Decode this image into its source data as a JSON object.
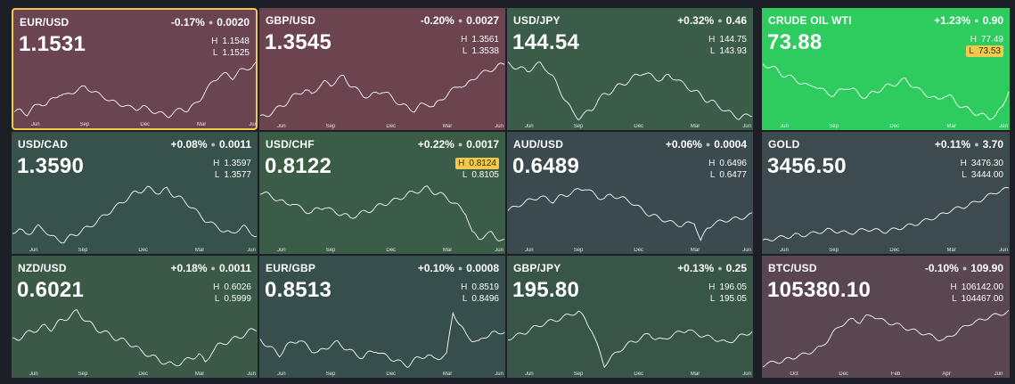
{
  "tiles": [
    {
      "symbol": "EUR/USD",
      "change_pct": "-0.17%",
      "change_abs": "0.0020",
      "price": "1.1531",
      "high": "1.1548",
      "low": "1.1525",
      "bg": "#6a4450",
      "selected": true,
      "high_badge": false,
      "low_badge": false,
      "months": [
        "Jun",
        "Sep",
        "Dec",
        "Mar",
        "Jun"
      ],
      "series": [
        30,
        32,
        28,
        35,
        40,
        38,
        45,
        50,
        48,
        52,
        55,
        58,
        54,
        50,
        47,
        42,
        40,
        38,
        35,
        34,
        36,
        33,
        30,
        28,
        26,
        30,
        34,
        32,
        38,
        45,
        55,
        65,
        70,
        72,
        68,
        75,
        78,
        80,
        85
      ]
    },
    {
      "symbol": "GBP/USD",
      "change_pct": "-0.20%",
      "change_abs": "0.0027",
      "price": "1.3545",
      "high": "1.3561",
      "low": "1.3538",
      "bg": "#6c4450",
      "selected": false,
      "high_badge": false,
      "low_badge": false,
      "months": [
        "Jun",
        "Sep",
        "Dec",
        "Mar",
        "Jun"
      ],
      "series": [
        28,
        30,
        34,
        38,
        42,
        48,
        52,
        55,
        50,
        58,
        62,
        60,
        65,
        68,
        60,
        55,
        50,
        48,
        52,
        54,
        50,
        45,
        40,
        38,
        35,
        40,
        42,
        38,
        45,
        50,
        55,
        60,
        58,
        65,
        70,
        72,
        75,
        78,
        80
      ]
    },
    {
      "symbol": "USD/JPY",
      "change_pct": "+0.32%",
      "change_abs": "0.46",
      "price": "144.54",
      "high": "144.75",
      "low": "143.93",
      "bg": "#3a5c48",
      "selected": false,
      "high_badge": false,
      "low_badge": false,
      "months": [
        "Jun",
        "Sep",
        "Dec",
        "Mar",
        "Jun"
      ],
      "series": [
        72,
        70,
        68,
        66,
        70,
        72,
        68,
        60,
        50,
        40,
        30,
        25,
        28,
        32,
        40,
        45,
        48,
        52,
        55,
        58,
        62,
        65,
        62,
        60,
        58,
        62,
        60,
        55,
        52,
        48,
        45,
        40,
        38,
        35,
        30,
        28,
        25,
        26,
        28
      ]
    },
    {
      "symbol": "CRUDE OIL WTI",
      "change_pct": "+1.23%",
      "change_abs": "0.90",
      "price": "73.88",
      "high": "77.49",
      "low": "73.53",
      "bg": "#2ecc5f",
      "selected": false,
      "high_badge": false,
      "low_badge": true,
      "months": [
        "Jun",
        "Sep",
        "Dec",
        "Mar",
        "Jun"
      ],
      "series": [
        70,
        68,
        65,
        60,
        58,
        55,
        52,
        48,
        50,
        45,
        42,
        40,
        44,
        48,
        45,
        40,
        38,
        42,
        45,
        48,
        50,
        52,
        55,
        50,
        45,
        42,
        38,
        35,
        40,
        38,
        32,
        28,
        25,
        22,
        20,
        18,
        20,
        28,
        45
      ]
    },
    {
      "symbol": "USD/CAD",
      "change_pct": "+0.08%",
      "change_abs": "0.0011",
      "price": "1.3590",
      "high": "1.3597",
      "low": "1.3577",
      "bg": "#37524a",
      "selected": false,
      "high_badge": false,
      "low_badge": false,
      "months": [
        "Jun",
        "Sep",
        "Dec",
        "Mar",
        "Jun"
      ],
      "series": [
        30,
        32,
        28,
        30,
        35,
        32,
        25,
        22,
        20,
        25,
        28,
        32,
        35,
        40,
        45,
        50,
        55,
        60,
        65,
        70,
        72,
        75,
        72,
        70,
        74,
        68,
        65,
        60,
        55,
        48,
        42,
        38,
        35,
        30,
        28,
        32,
        35,
        30,
        25
      ]
    },
    {
      "symbol": "USD/CHF",
      "change_pct": "+0.22%",
      "change_abs": "0.0017",
      "price": "0.8122",
      "high": "0.8124",
      "low": "0.8105",
      "bg": "#3b5c47",
      "selected": false,
      "high_badge": true,
      "low_badge": false,
      "months": [
        "Jun",
        "Sep",
        "Dec",
        "Mar",
        "Jun"
      ],
      "series": [
        60,
        58,
        55,
        52,
        48,
        50,
        45,
        42,
        40,
        44,
        46,
        42,
        40,
        38,
        35,
        38,
        40,
        42,
        45,
        48,
        50,
        52,
        55,
        58,
        60,
        62,
        64,
        60,
        58,
        55,
        50,
        45,
        40,
        20,
        15,
        18,
        20,
        15,
        12
      ]
    },
    {
      "symbol": "AUD/USD",
      "change_pct": "+0.06%",
      "change_abs": "0.0004",
      "price": "0.6489",
      "high": "0.6496",
      "low": "0.6477",
      "bg": "#3b4a4f",
      "selected": false,
      "high_badge": false,
      "low_badge": false,
      "months": [
        "Jun",
        "Sep",
        "Dec",
        "Mar",
        "Jun"
      ],
      "series": [
        45,
        48,
        52,
        55,
        58,
        60,
        58,
        55,
        60,
        62,
        65,
        68,
        70,
        65,
        60,
        58,
        62,
        60,
        58,
        55,
        50,
        45,
        40,
        38,
        35,
        32,
        30,
        28,
        30,
        32,
        10,
        25,
        30,
        32,
        34,
        35,
        36,
        38,
        40
      ]
    },
    {
      "symbol": "GOLD",
      "change_pct": "+0.11%",
      "change_abs": "3.70",
      "price": "3456.50",
      "high": "3476.30",
      "low": "3444.00",
      "bg": "#3d4b4f",
      "selected": false,
      "high_badge": false,
      "low_badge": false,
      "months": [
        "Jun",
        "Sep",
        "Dec",
        "Mar",
        "Jun"
      ],
      "series": [
        10,
        12,
        14,
        15,
        16,
        18,
        17,
        19,
        20,
        22,
        24,
        23,
        22,
        20,
        21,
        23,
        25,
        24,
        23,
        22,
        24,
        26,
        28,
        30,
        32,
        35,
        38,
        40,
        44,
        48,
        50,
        52,
        55,
        58,
        62,
        66,
        70,
        72,
        75
      ]
    },
    {
      "symbol": "NZD/USD",
      "change_pct": "+0.18%",
      "change_abs": "0.0011",
      "price": "0.6021",
      "high": "0.6026",
      "low": "0.5999",
      "bg": "#3a5a47",
      "selected": false,
      "high_badge": false,
      "low_badge": false,
      "months": [
        "Jun",
        "Sep",
        "Dec",
        "Mar",
        "Jun"
      ],
      "series": [
        40,
        42,
        45,
        48,
        50,
        52,
        50,
        55,
        58,
        62,
        65,
        60,
        55,
        50,
        48,
        45,
        42,
        40,
        38,
        35,
        30,
        28,
        25,
        22,
        20,
        18,
        20,
        22,
        25,
        28,
        20,
        30,
        35,
        38,
        40,
        42,
        45,
        48,
        50
      ]
    },
    {
      "symbol": "EUR/GBP",
      "change_pct": "+0.10%",
      "change_abs": "0.0008",
      "price": "0.8513",
      "high": "0.8519",
      "low": "0.8496",
      "bg": "#374f4c",
      "selected": false,
      "high_badge": false,
      "low_badge": false,
      "months": [
        "Jun",
        "Sep",
        "Dec",
        "Mar",
        "Jun"
      ],
      "series": [
        45,
        40,
        35,
        30,
        38,
        42,
        45,
        40,
        35,
        32,
        36,
        40,
        42,
        38,
        34,
        30,
        28,
        32,
        35,
        30,
        28,
        25,
        22,
        20,
        25,
        28,
        30,
        26,
        28,
        30,
        72,
        60,
        50,
        45,
        42,
        48,
        52,
        50,
        54
      ]
    },
    {
      "symbol": "GBP/JPY",
      "change_pct": "+0.13%",
      "change_abs": "0.25",
      "price": "195.80",
      "high": "196.05",
      "low": "195.05",
      "bg": "#385648",
      "selected": false,
      "high_badge": false,
      "low_badge": false,
      "months": [
        "Jun",
        "Sep",
        "Dec",
        "Mar",
        "Jun"
      ],
      "series": [
        40,
        42,
        45,
        48,
        52,
        55,
        58,
        60,
        62,
        65,
        68,
        70,
        62,
        50,
        30,
        10,
        18,
        25,
        30,
        35,
        38,
        42,
        45,
        40,
        38,
        42,
        45,
        48,
        50,
        46,
        44,
        42,
        40,
        38,
        35,
        38,
        42,
        45,
        48
      ]
    },
    {
      "symbol": "BTC/USD",
      "change_pct": "-0.10%",
      "change_abs": "109.90",
      "price": "105380.10",
      "high": "106142.00",
      "low": "104467.00",
      "bg": "#5a4650",
      "selected": false,
      "high_badge": false,
      "low_badge": false,
      "months": [
        "Oct",
        "Dec",
        "Feb",
        "Apr",
        "Jun"
      ],
      "series": [
        10,
        12,
        15,
        14,
        18,
        20,
        22,
        25,
        28,
        32,
        40,
        50,
        58,
        62,
        65,
        62,
        68,
        70,
        65,
        62,
        60,
        58,
        55,
        52,
        50,
        48,
        45,
        42,
        40,
        45,
        50,
        55,
        60,
        62,
        65,
        68,
        70,
        72,
        74
      ]
    }
  ]
}
